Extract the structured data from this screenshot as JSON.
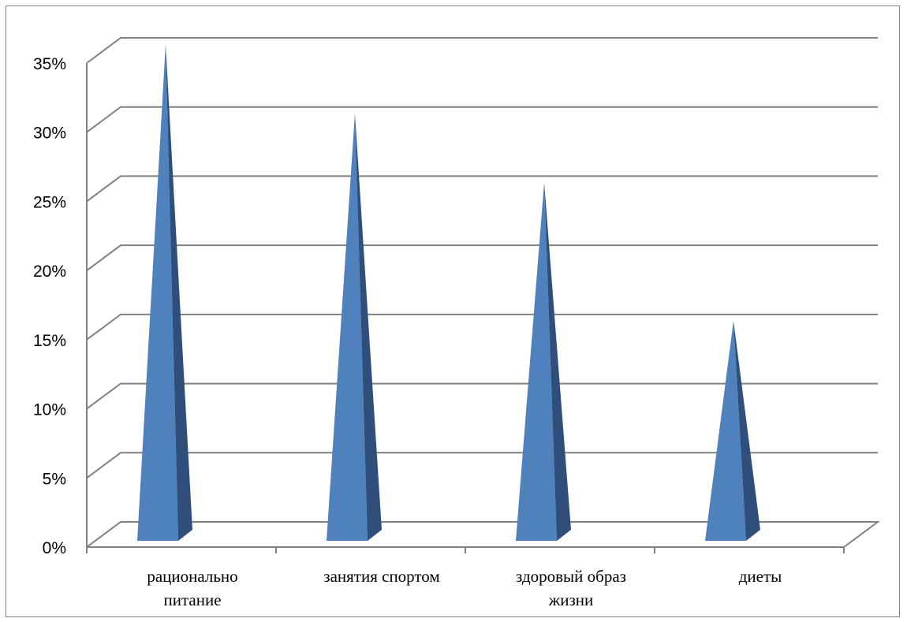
{
  "chart_data": {
    "type": "bar",
    "style": "3d-pyramid",
    "title": "",
    "xlabel": "",
    "ylabel": "",
    "categories": [
      [
        "рационально",
        "питание"
      ],
      [
        "занятия спортом"
      ],
      [
        "здоровый образ",
        "жизни"
      ],
      [
        "диеты"
      ]
    ],
    "values": [
      35,
      30,
      25,
      15
    ],
    "y_ticks": [
      "0%",
      "5%",
      "10%",
      "15%",
      "20%",
      "25%",
      "30%",
      "35%"
    ],
    "ylim": [
      0,
      35
    ],
    "grid": true,
    "legend": "none",
    "colors": {
      "front_face": "#4f81bd",
      "side_face": "#2f4f7a",
      "gridline": "#808080"
    }
  }
}
